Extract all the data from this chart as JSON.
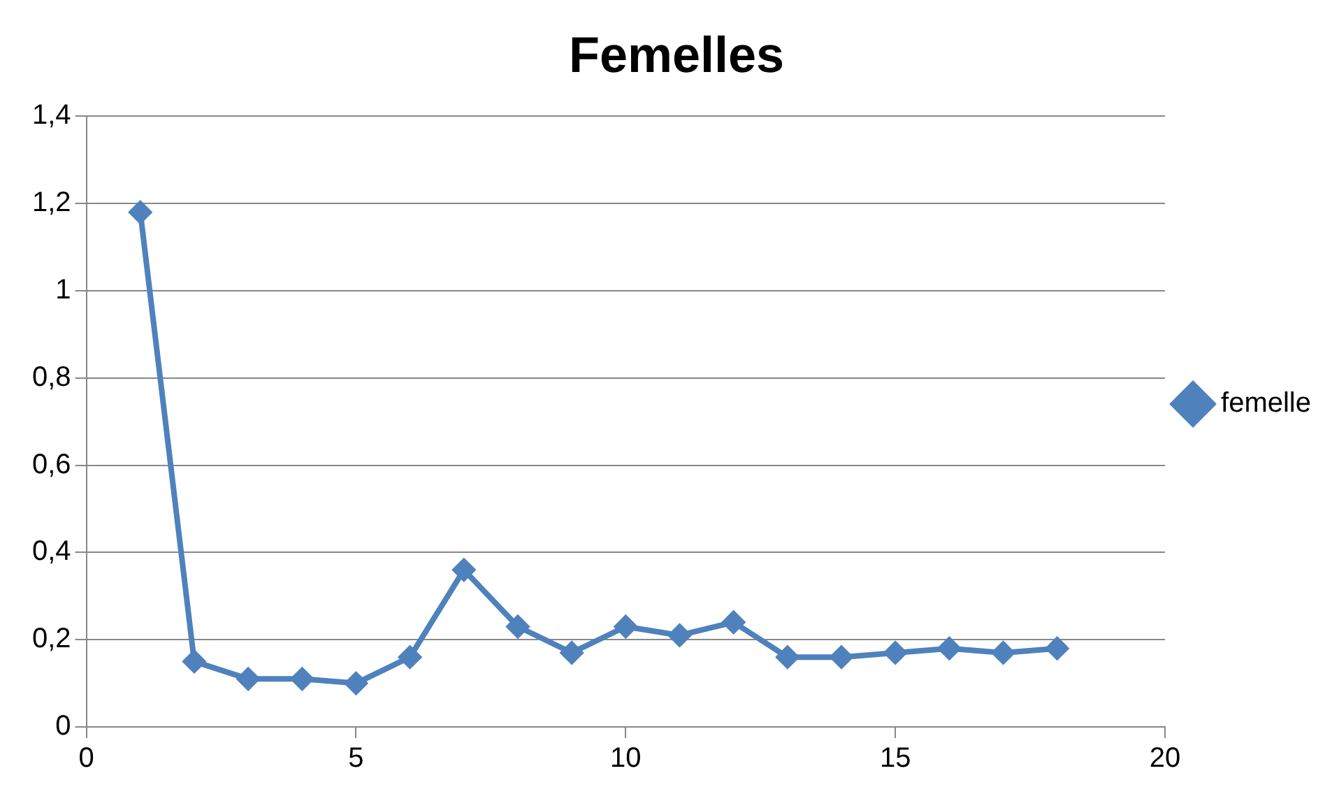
{
  "chart_data": {
    "type": "line",
    "title": "Femelles",
    "x": [
      1,
      2,
      3,
      4,
      5,
      6,
      7,
      8,
      9,
      10,
      11,
      12,
      13,
      14,
      15,
      16,
      17,
      18
    ],
    "series": [
      {
        "name": "femelle",
        "color": "#4f81bd",
        "values": [
          1.18,
          0.15,
          0.11,
          0.11,
          0.1,
          0.16,
          0.36,
          0.23,
          0.17,
          0.23,
          0.21,
          0.24,
          0.16,
          0.16,
          0.17,
          0.18,
          0.17,
          0.18
        ]
      }
    ],
    "xlim": [
      0,
      20
    ],
    "xticks": [
      0,
      5,
      10,
      15,
      20
    ],
    "ylim": [
      0,
      1.4
    ],
    "yticks": [
      0,
      {
        "value": 0.2,
        "label": "0,2"
      },
      {
        "value": 0.4,
        "label": "0,4"
      },
      {
        "value": 0.6,
        "label": "0,6"
      },
      {
        "value": 0.8,
        "label": "0,8"
      },
      1,
      {
        "value": 1.2,
        "label": "1,2"
      },
      {
        "value": 1.4,
        "label": "1,4"
      }
    ],
    "grid": "y",
    "legend": "right",
    "marker": "diamond",
    "line_style": "solid"
  }
}
